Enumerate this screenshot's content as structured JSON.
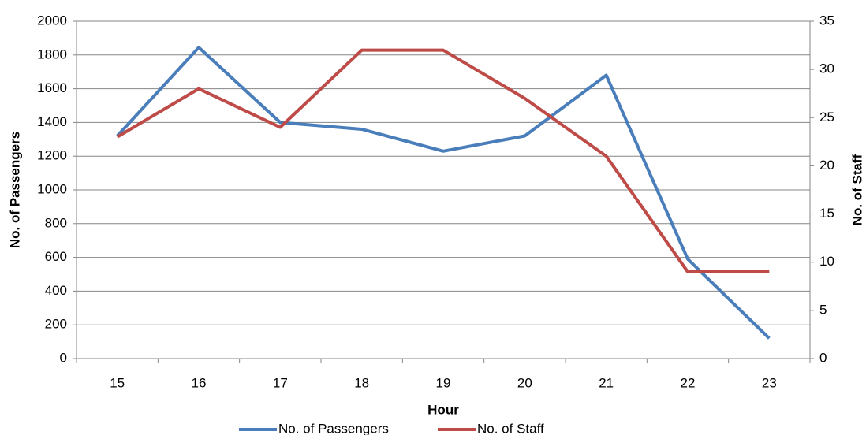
{
  "chart_data": {
    "type": "line",
    "x_label": "Hour",
    "y_label": "No. of Passengers",
    "y2_label": "No. of Staff",
    "categories": [
      "15",
      "16",
      "17",
      "18",
      "19",
      "20",
      "21",
      "22",
      "23"
    ],
    "series": [
      {
        "name": "No. of Passengers",
        "color": "#4a7ebb",
        "values": [
          1320,
          1845,
          1400,
          1360,
          1230,
          1320,
          1680,
          590,
          120
        ]
      },
      {
        "name": "No. of Staff",
        "color": "#be4b48",
        "axis": "y2",
        "values": [
          23,
          28,
          24,
          32,
          32,
          27,
          21,
          9,
          9
        ]
      }
    ],
    "ylim": [
      0,
      2000
    ],
    "yticks": [
      0,
      200,
      400,
      600,
      800,
      1000,
      1200,
      1400,
      1600,
      1800,
      2000
    ],
    "y2lim": [
      0,
      35
    ],
    "y2ticks": [
      0,
      5,
      10,
      15,
      20,
      25,
      30,
      35
    ],
    "grid": true,
    "legend": "bottom"
  }
}
